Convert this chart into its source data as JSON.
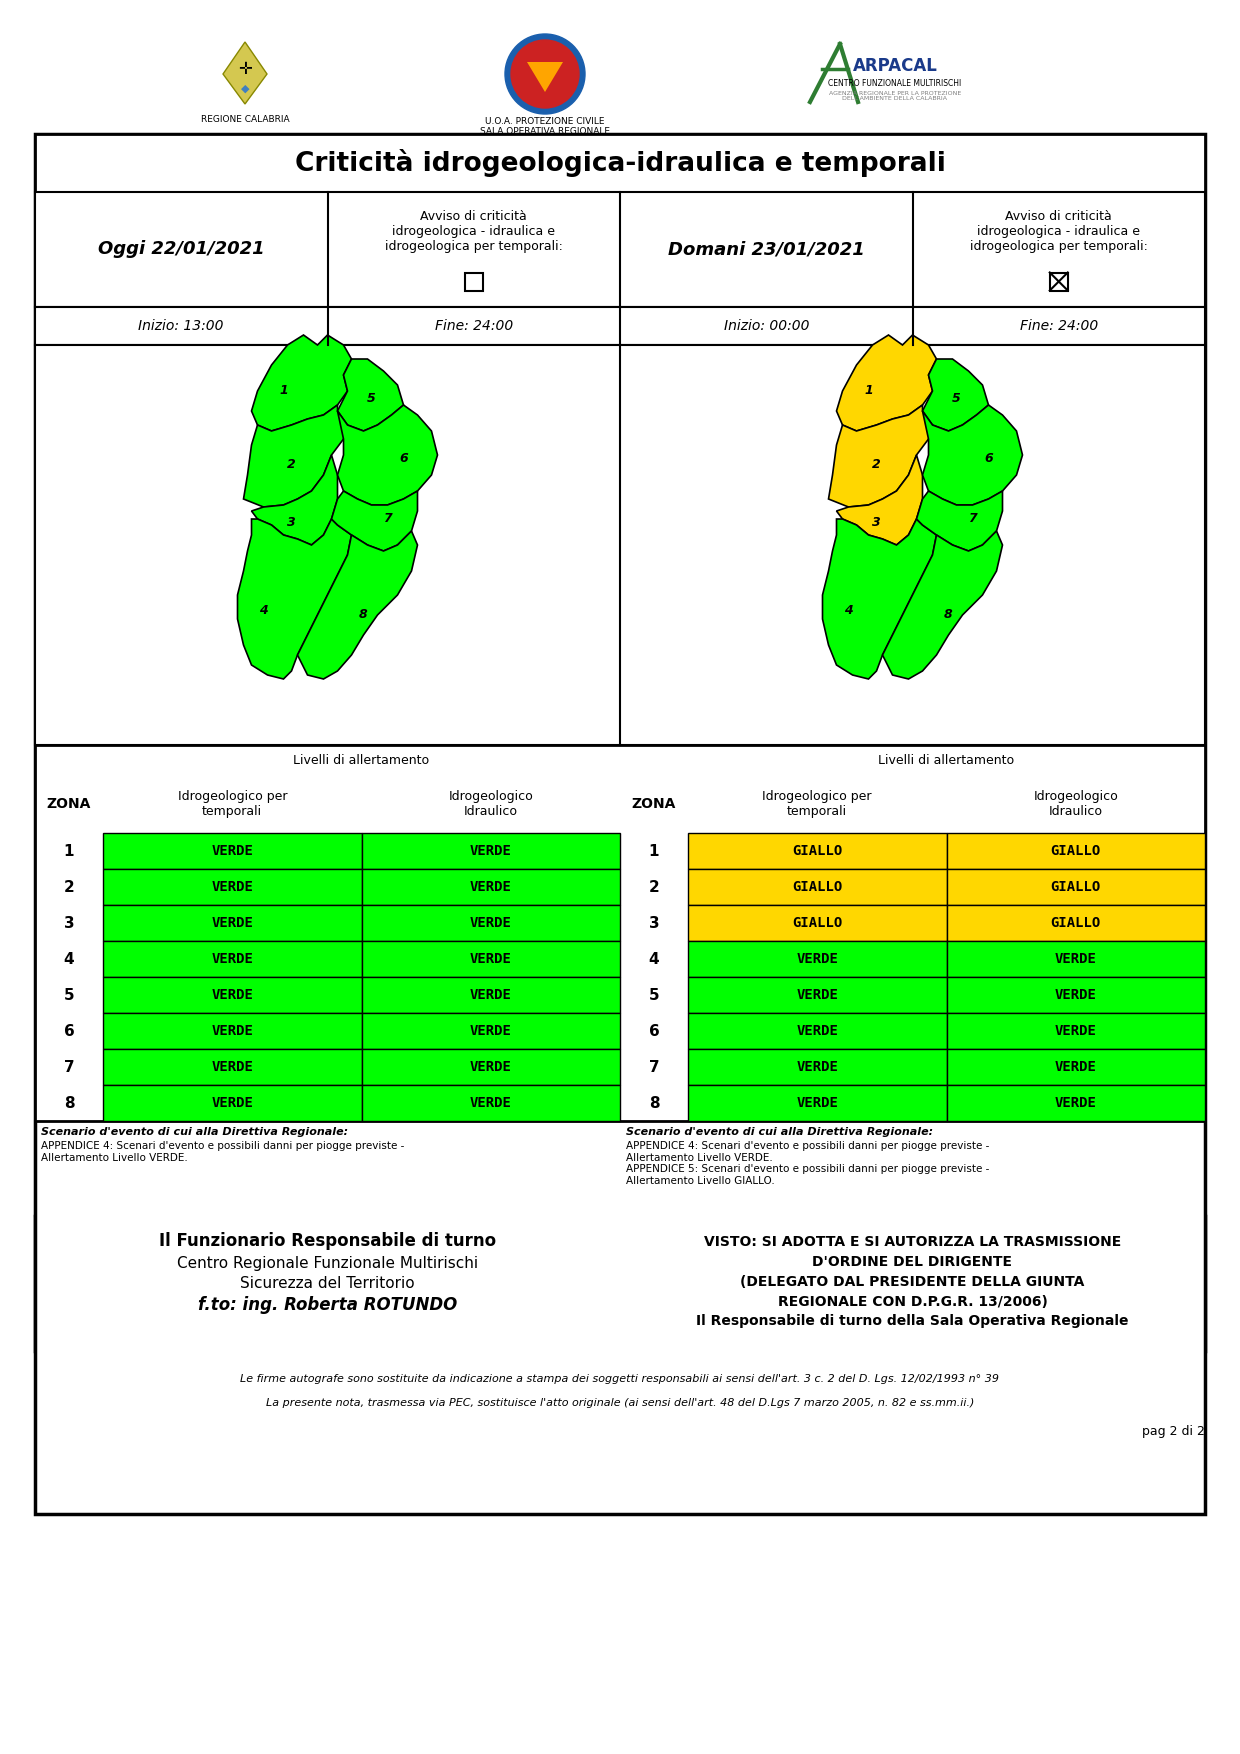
{
  "title": "Criticità idrogeologica-idraulica e temporali",
  "today_date": "Oggi 22/01/2021",
  "tomorrow_date": "Domani 23/01/2021",
  "today_times": {
    "inizio": "Inizio: 13:00",
    "fine": "Fine: 24:00"
  },
  "tomorrow_times": {
    "inizio": "Inizio: 00:00",
    "fine": "Fine: 24:00"
  },
  "avviso_label": "Avviso di criticità\nidrogeologica - idraulica e\nidrogeologica per temporali:",
  "zones": [
    1,
    2,
    3,
    4,
    5,
    6,
    7,
    8
  ],
  "today_temporali": [
    "VERDE",
    "VERDE",
    "VERDE",
    "VERDE",
    "VERDE",
    "VERDE",
    "VERDE",
    "VERDE"
  ],
  "today_idraulico": [
    "VERDE",
    "VERDE",
    "VERDE",
    "VERDE",
    "VERDE",
    "VERDE",
    "VERDE",
    "VERDE"
  ],
  "tomorrow_temporali": [
    "GIALLO",
    "GIALLO",
    "GIALLO",
    "VERDE",
    "VERDE",
    "VERDE",
    "VERDE",
    "VERDE"
  ],
  "tomorrow_idraulico": [
    "GIALLO",
    "GIALLO",
    "GIALLO",
    "VERDE",
    "VERDE",
    "VERDE",
    "VERDE",
    "VERDE"
  ],
  "verde_color": "#00FF00",
  "giallo_color": "#FFD700",
  "header_text": "Livelli di allertamento",
  "col1_header": "Idrogeologico per\ntemporali",
  "col2_header": "Idrogeologico\nIdraulico",
  "zona_header": "ZONA",
  "scenario_left_bold": "Scenario d'evento di cui alla Direttiva Regionale:",
  "scenario_left_body": "APPENDICE 4: Scenari d'evento e possibili danni per piogge previste -\nAllertamento Livello VERDE.",
  "scenario_right_bold": "Scenario d'evento di cui alla Direttiva Regionale:",
  "scenario_right_body": "APPENDICE 4: Scenari d'evento e possibili danni per piogge previste -\nAllertamento Livello VERDE.\nAPPENDICE 5: Scenari d'evento e possibili danni per piogge previste -\nAllertamento Livello GIALLO.",
  "footer_left_line1": "Il Funzionario Responsabile di turno",
  "footer_left_line2": "Centro Regionale Funzionale Multirischi",
  "footer_left_line3": "Sicurezza del Territorio",
  "footer_left_line4": "f.to: ing. Roberta ROTUNDO",
  "footer_right_line1": "VISTO: SI ADOTTA E SI AUTORIZZA LA TRASMISSIONE",
  "footer_right_line2": "D'ORDINE DEL DIRIGENTE",
  "footer_right_line3": "(DELEGATO DAL PRESIDENTE DELLA GIUNTA",
  "footer_right_line4": "REGIONALE CON D.P.G.R. 13/2006)",
  "footer_right_line5": "Il Responsabile di turno della Sala Operativa Regionale",
  "footnote1": "Le firme autografe sono sostituite da indicazione a stampa dei soggetti responsabili ai sensi dell'art. 3 c. 2 del D. Lgs. 12/02/1993 n° 39",
  "footnote2": "La presente nota, trasmessa via PEC, sostituisce l'atto originale (ai sensi dell'art. 48 del D.Lgs 7 marzo 2005, n. 82 e ss.mm.ii.)",
  "page_label": "pag 2 di 2",
  "bg_color": "#FFFFFF"
}
